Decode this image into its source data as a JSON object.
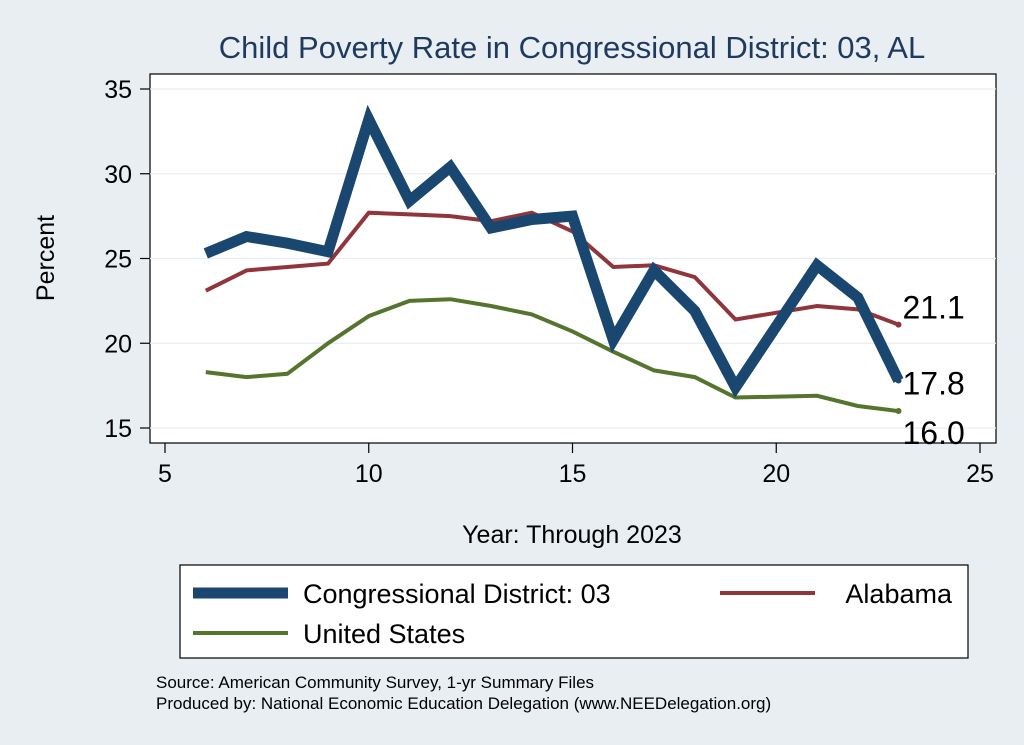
{
  "chart_data": {
    "type": "line",
    "title": "Child Poverty Rate in Congressional District:  03, AL",
    "xlabel": "Year: Through 2023",
    "ylabel": "Percent",
    "xlim": [
      5,
      25
    ],
    "ylim": [
      15,
      35
    ],
    "xticks": [
      5,
      10,
      15,
      20,
      25
    ],
    "yticks": [
      15,
      20,
      25,
      30,
      35
    ],
    "grid": true,
    "legend_position": "bottom",
    "series": [
      {
        "name": "Congressional District:  03",
        "color": "#1a476f",
        "x": [
          6,
          7,
          8,
          9,
          10,
          11,
          12,
          13,
          14,
          15,
          16,
          17,
          18,
          19,
          21,
          22,
          23
        ],
        "values": [
          25.3,
          26.3,
          25.9,
          25.4,
          33.2,
          28.4,
          30.4,
          26.8,
          27.3,
          27.5,
          20.2,
          24.3,
          21.9,
          17.4,
          24.6,
          22.7,
          17.8
        ],
        "end_label": "17.8"
      },
      {
        "name": "Alabama",
        "color": "#90353b",
        "x": [
          6,
          7,
          8,
          9,
          10,
          11,
          12,
          13,
          14,
          15,
          16,
          17,
          18,
          19,
          21,
          22,
          23
        ],
        "values": [
          23.1,
          24.3,
          24.5,
          24.7,
          27.7,
          27.6,
          27.5,
          27.2,
          27.7,
          26.6,
          24.5,
          24.6,
          23.9,
          21.4,
          22.2,
          22.0,
          21.1
        ],
        "end_label": "21.1"
      },
      {
        "name": "United States",
        "color": "#55752f",
        "x": [
          6,
          7,
          8,
          9,
          10,
          11,
          12,
          13,
          14,
          15,
          16,
          17,
          18,
          19,
          21,
          22,
          23
        ],
        "values": [
          18.3,
          18.0,
          18.2,
          20.0,
          21.6,
          22.5,
          22.6,
          22.2,
          21.7,
          20.7,
          19.5,
          18.4,
          18.0,
          16.8,
          16.9,
          16.3,
          16.0
        ],
        "end_label": "16.0"
      }
    ],
    "source_lines": [
      "Source: American Community Survey, 1-yr Summary Files",
      "Produced by: National Economic Education Delegation (www.NEEDelegation.org)"
    ]
  }
}
